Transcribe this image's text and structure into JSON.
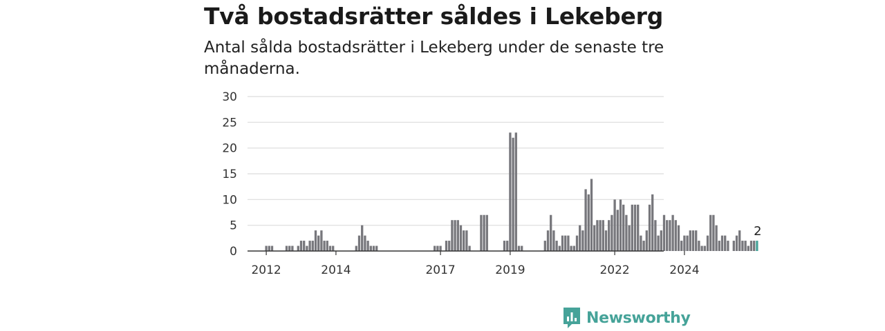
{
  "title": "Två bostadsrätter såldes i Lekeberg",
  "subtitle": "Antal sålda bostadsrätter i Lekeberg under de senaste tre månaderna.",
  "brand": {
    "name": "Newsworthy",
    "icon": "newsworthy-logo-icon",
    "color": "#46a399"
  },
  "chart_data": {
    "type": "bar",
    "title": "Två bostadsrätter såldes i Lekeberg",
    "subtitle": "Antal sålda bostadsrätter i Lekeberg under de senaste tre månaderna.",
    "xlabel": "",
    "ylabel": "",
    "ylim": [
      0,
      30
    ],
    "yticks": [
      0,
      5,
      10,
      15,
      20,
      25,
      30
    ],
    "xticks": [
      "2012",
      "2014",
      "2017",
      "2019",
      "2022",
      "2024"
    ],
    "x_start": "2011-11",
    "period": "month",
    "grid": true,
    "bar_color": "#77777c",
    "highlight_color": "#46a399",
    "highlight_label": "2",
    "values": [
      0,
      0,
      0,
      1,
      1,
      1,
      0,
      0,
      0,
      0,
      1,
      1,
      1,
      0,
      1,
      2,
      2,
      1,
      2,
      2,
      4,
      3,
      4,
      2,
      2,
      1,
      1,
      0,
      0,
      0,
      0,
      0,
      0,
      0,
      1,
      3,
      5,
      3,
      2,
      1,
      1,
      1,
      0,
      0,
      0,
      0,
      0,
      0,
      0,
      0,
      0,
      0,
      0,
      0,
      0,
      0,
      0,
      0,
      0,
      0,
      0,
      1,
      1,
      1,
      0,
      2,
      2,
      6,
      6,
      6,
      5,
      4,
      4,
      1,
      0,
      0,
      0,
      7,
      7,
      7,
      0,
      0,
      0,
      0,
      0,
      2,
      2,
      23,
      22,
      23,
      1,
      1,
      0,
      0,
      0,
      0,
      0,
      0,
      0,
      2,
      4,
      7,
      4,
      2,
      1,
      3,
      3,
      3,
      1,
      1,
      3,
      5,
      4,
      12,
      11,
      14,
      5,
      6,
      6,
      6,
      4,
      6,
      7,
      10,
      8,
      10,
      9,
      7,
      5,
      9,
      9,
      9,
      3,
      2,
      4,
      9,
      11,
      6,
      3,
      4,
      7,
      6,
      6,
      7,
      6,
      5,
      2,
      3,
      3,
      4,
      4,
      4,
      2,
      1,
      1,
      3,
      7,
      7,
      5,
      2,
      3,
      3,
      2,
      0,
      2,
      3,
      4,
      2,
      2,
      1,
      2,
      2,
      2
    ]
  }
}
